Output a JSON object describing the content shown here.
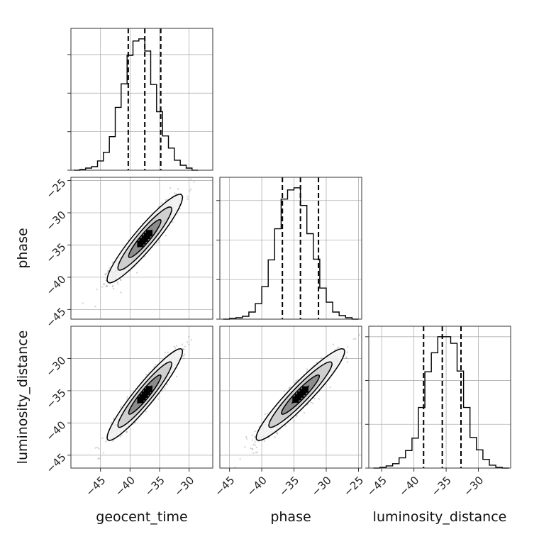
{
  "chart_data": {
    "type": "corner",
    "parameters": [
      "geocent_time",
      "phase",
      "luminosity_distance"
    ],
    "axis_labels": {
      "x": [
        "geocent_time",
        "phase",
        "luminosity_distance"
      ],
      "y": [
        "phase",
        "luminosity_distance"
      ]
    },
    "ranges": {
      "geocent_time": [
        -50,
        -26
      ],
      "phase": [
        -46.5,
        -24.5
      ],
      "luminosity_distance": [
        -47,
        -25
      ]
    },
    "ticks": {
      "geocent_time": [
        -45,
        -40,
        -35,
        -30
      ],
      "phase": [
        -45,
        -40,
        -35,
        -30,
        -25
      ],
      "luminosity_distance": [
        -45,
        -40,
        -35,
        -30
      ]
    },
    "tick_labels": {
      "geocent_time": [
        "−45",
        "−40",
        "−35",
        "−30"
      ],
      "phase": [
        "−45",
        "−40",
        "−35",
        "−30",
        "−25"
      ],
      "luminosity_distance": [
        "−45",
        "−40",
        "−35",
        "−30"
      ]
    },
    "quantiles": {
      "geocent_time": [
        -40.3,
        -37.5,
        -34.8
      ],
      "phase": [
        -36.8,
        -34.0,
        -31.2
      ],
      "luminosity_distance": [
        -38.5,
        -35.6,
        -32.7
      ]
    },
    "histograms": {
      "geocent_time": {
        "edges": [
          -49.5,
          -48.5,
          -47.5,
          -46.5,
          -45.5,
          -44.5,
          -43.5,
          -42.5,
          -41.5,
          -40.5,
          -39.5,
          -38.5,
          -37.5,
          -36.5,
          -35.5,
          -34.5,
          -33.5,
          -32.5,
          -31.5,
          -30.5,
          -29.5,
          -28.5
        ],
        "counts": [
          0,
          1,
          3,
          5,
          13,
          25,
          47,
          88,
          121,
          161,
          181,
          184,
          167,
          120,
          82,
          48,
          31,
          14,
          7,
          3,
          0
        ],
        "yticks": [
          0,
          54,
          108,
          162
        ]
      },
      "phase": {
        "edges": [
          -46,
          -45,
          -44,
          -43,
          -42,
          -41,
          -40,
          -39,
          -38,
          -37,
          -36,
          -35,
          -34,
          -33,
          -32,
          -31,
          -30,
          -29,
          -28,
          -27,
          -26,
          -25
        ],
        "counts": [
          0,
          1,
          2,
          4,
          10,
          22,
          46,
          84,
          128,
          170,
          183,
          186,
          161,
          121,
          85,
          44,
          24,
          10,
          5,
          2,
          0
        ],
        "yticks": [
          0,
          56,
          112,
          168
        ]
      },
      "luminosity_distance": {
        "edges": [
          -46.3,
          -45.3,
          -44.3,
          -43.3,
          -42.3,
          -41.3,
          -40.3,
          -39.3,
          -38.3,
          -37.3,
          -36.3,
          -35.3,
          -34.3,
          -33.3,
          -32.3,
          -31.3,
          -30.3,
          -29.3,
          -28.3,
          -27.3,
          -26.3,
          -25.3
        ],
        "counts": [
          0,
          1,
          3,
          6,
          14,
          24,
          41,
          83,
          132,
          158,
          180,
          180,
          171,
          133,
          83,
          42,
          25,
          12,
          4,
          1,
          0
        ],
        "yticks": [
          0,
          60,
          120,
          180
        ]
      }
    },
    "scatter_2d": [
      {
        "x": "geocent_time",
        "y": "phase",
        "center": [
          -37.5,
          -34.0
        ],
        "sigma_x": 2.6,
        "sigma_y": 2.8,
        "correlation": 0.93
      },
      {
        "x": "geocent_time",
        "y": "luminosity_distance",
        "center": [
          -37.5,
          -35.6
        ],
        "sigma_x": 2.6,
        "sigma_y": 2.9,
        "correlation": 0.94
      },
      {
        "x": "phase",
        "y": "luminosity_distance",
        "center": [
          -34.0,
          -35.6
        ],
        "sigma_x": 2.8,
        "sigma_y": 2.9,
        "correlation": 0.94
      }
    ],
    "colors": {
      "lines": "#000000",
      "points": "#9a9a9a",
      "grid": "#b0b0b0"
    }
  }
}
